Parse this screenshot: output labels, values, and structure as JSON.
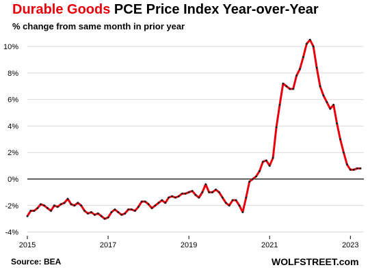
{
  "title": {
    "part1": "Durable Goods",
    "part2": "PCE Price Index Year-over-Year"
  },
  "subtitle": "% change from same month in prior year",
  "source": "Source: BEA",
  "brand": "WOLFSTREET.com",
  "colors": {
    "accent": "#e8000b",
    "line": "#e8000b",
    "marker": "#222222",
    "grid": "#d9d9d9",
    "zero_line": "#000000"
  },
  "chart_data": {
    "type": "line",
    "title": "Durable Goods PCE Price Index Year-over-Year",
    "subtitle": "% change from same month in prior year",
    "xlabel": "",
    "ylabel": "",
    "x_ticks": [
      "2015",
      "2017",
      "2019",
      "2021",
      "2023"
    ],
    "y_ticks": [
      "10%",
      "8%",
      "6%",
      "4%",
      "2%",
      "0%",
      "-2%",
      "-4%"
    ],
    "ylim": [
      -4,
      11
    ],
    "xlim": [
      "2015-01",
      "2023-05"
    ],
    "grid": "horizontal",
    "markers": true,
    "series": [
      {
        "name": "",
        "x": [
          "2015-01",
          "2015-02",
          "2015-03",
          "2015-04",
          "2015-05",
          "2015-06",
          "2015-07",
          "2015-08",
          "2015-09",
          "2015-10",
          "2015-11",
          "2015-12",
          "2016-01",
          "2016-02",
          "2016-03",
          "2016-04",
          "2016-05",
          "2016-06",
          "2016-07",
          "2016-08",
          "2016-09",
          "2016-10",
          "2016-11",
          "2016-12",
          "2017-01",
          "2017-02",
          "2017-03",
          "2017-04",
          "2017-05",
          "2017-06",
          "2017-07",
          "2017-08",
          "2017-09",
          "2017-10",
          "2017-11",
          "2017-12",
          "2018-01",
          "2018-02",
          "2018-03",
          "2018-04",
          "2018-05",
          "2018-06",
          "2018-07",
          "2018-08",
          "2018-09",
          "2018-10",
          "2018-11",
          "2018-12",
          "2019-01",
          "2019-02",
          "2019-03",
          "2019-04",
          "2019-05",
          "2019-06",
          "2019-07",
          "2019-08",
          "2019-09",
          "2019-10",
          "2019-11",
          "2019-12",
          "2020-01",
          "2020-02",
          "2020-03",
          "2020-04",
          "2020-05",
          "2020-06",
          "2020-07",
          "2020-08",
          "2020-09",
          "2020-10",
          "2020-11",
          "2020-12",
          "2021-01",
          "2021-02",
          "2021-03",
          "2021-04",
          "2021-05",
          "2021-06",
          "2021-07",
          "2021-08",
          "2021-09",
          "2021-10",
          "2021-11",
          "2021-12",
          "2022-01",
          "2022-02",
          "2022-03",
          "2022-04",
          "2022-05",
          "2022-06",
          "2022-07",
          "2022-08",
          "2022-09",
          "2022-10",
          "2022-11",
          "2022-12",
          "2023-01",
          "2023-02",
          "2023-03",
          "2023-04"
        ],
        "values": [
          -2.8,
          -2.4,
          -2.4,
          -2.2,
          -1.9,
          -2.0,
          -2.2,
          -2.4,
          -2.0,
          -2.1,
          -1.9,
          -1.8,
          -1.5,
          -1.9,
          -2.0,
          -1.8,
          -2.0,
          -2.4,
          -2.6,
          -2.5,
          -2.7,
          -2.6,
          -2.8,
          -3.0,
          -2.9,
          -2.5,
          -2.3,
          -2.5,
          -2.7,
          -2.6,
          -2.3,
          -2.3,
          -2.4,
          -2.1,
          -1.7,
          -1.7,
          -1.9,
          -2.2,
          -2.0,
          -1.8,
          -1.6,
          -1.8,
          -1.4,
          -1.3,
          -1.4,
          -1.3,
          -1.1,
          -1.1,
          -1.0,
          -0.9,
          -1.2,
          -1.4,
          -1.0,
          -0.4,
          -1.0,
          -1.0,
          -0.8,
          -1.0,
          -1.4,
          -1.8,
          -2.0,
          -1.6,
          -1.6,
          -2.0,
          -2.5,
          -1.4,
          -0.2,
          0.0,
          0.2,
          0.6,
          1.3,
          1.4,
          1.0,
          1.6,
          3.9,
          5.6,
          7.2,
          7.0,
          6.8,
          6.8,
          7.8,
          8.3,
          9.2,
          10.2,
          10.5,
          10.0,
          8.4,
          7.0,
          6.3,
          5.8,
          5.3,
          5.6,
          4.2,
          3.0,
          2.0,
          1.1,
          0.7,
          0.7,
          0.8,
          0.8
        ]
      }
    ]
  }
}
